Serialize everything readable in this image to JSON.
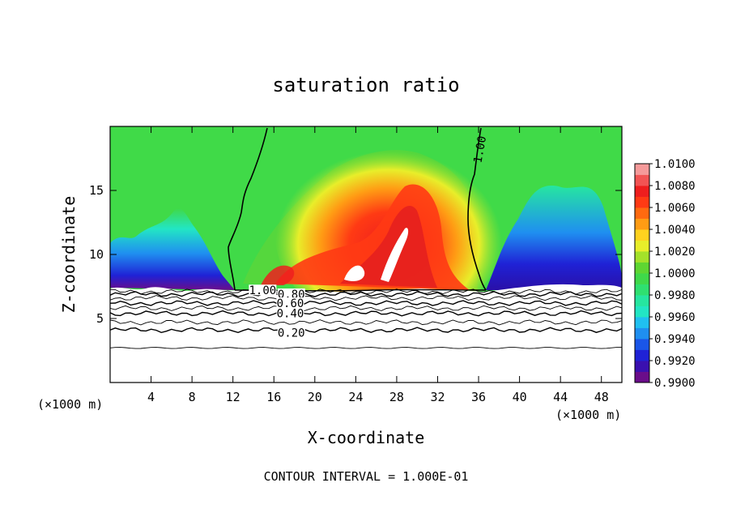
{
  "chart_data": {
    "type": "heatmap",
    "title": "saturation ratio",
    "xlabel": "X-coordinate",
    "ylabel": "Z-coordinate",
    "x_unit": "(×1000 m)",
    "z_unit": "(×1000 m)",
    "xlim": [
      0,
      50
    ],
    "ylim": [
      0,
      20
    ],
    "x_ticks": [
      4,
      8,
      12,
      16,
      20,
      24,
      28,
      32,
      36,
      40,
      44,
      48
    ],
    "y_ticks": [
      5,
      10,
      15
    ],
    "footer": "CONTOUR INTERVAL = 1.000E-01",
    "colorbar": {
      "min": 0.99,
      "max": 1.01,
      "labels": [
        "1.0100",
        "1.0080",
        "1.0060",
        "1.0040",
        "1.0020",
        "1.0000",
        "0.9980",
        "0.9960",
        "0.9940",
        "0.9920",
        "0.9900"
      ],
      "colors": [
        "#6a0d8a",
        "#3a10b0",
        "#1f22d6",
        "#1a56e8",
        "#1f8ff0",
        "#20c0f0",
        "#22e6c4",
        "#26e6a0",
        "#2fe070",
        "#3fd94a",
        "#5ed632",
        "#a4e22a",
        "#e8ee2a",
        "#ffd21f",
        "#ff9c14",
        "#ff6a10",
        "#ff3a14",
        "#ee1e1e",
        "#f25454",
        "#f59a9a"
      ]
    },
    "contour_labels": [
      {
        "text": "1.00",
        "x": 14.9,
        "z": 7.2
      },
      {
        "text": "0.80",
        "x": 17.7,
        "z": 6.9
      },
      {
        "text": "0.60",
        "x": 17.6,
        "z": 6.2
      },
      {
        "text": "0.40",
        "x": 17.6,
        "z": 5.4
      },
      {
        "text": "0.20",
        "x": 17.7,
        "z": 3.9
      },
      {
        "text": "1.00",
        "x": 36.1,
        "z": 18.2
      }
    ],
    "contours_below_cloud": [
      {
        "level": 0.2,
        "z": 4.1
      },
      {
        "level": 0.3,
        "z": 4.7
      },
      {
        "level": 0.4,
        "z": 5.4
      },
      {
        "level": 0.5,
        "z": 5.8
      },
      {
        "level": 0.6,
        "z": 6.2
      },
      {
        "level": 0.7,
        "z": 6.6
      },
      {
        "level": 0.8,
        "z": 6.9
      },
      {
        "level": 0.9,
        "z": 7.1
      }
    ],
    "bottom_line_z": 2.7
  }
}
